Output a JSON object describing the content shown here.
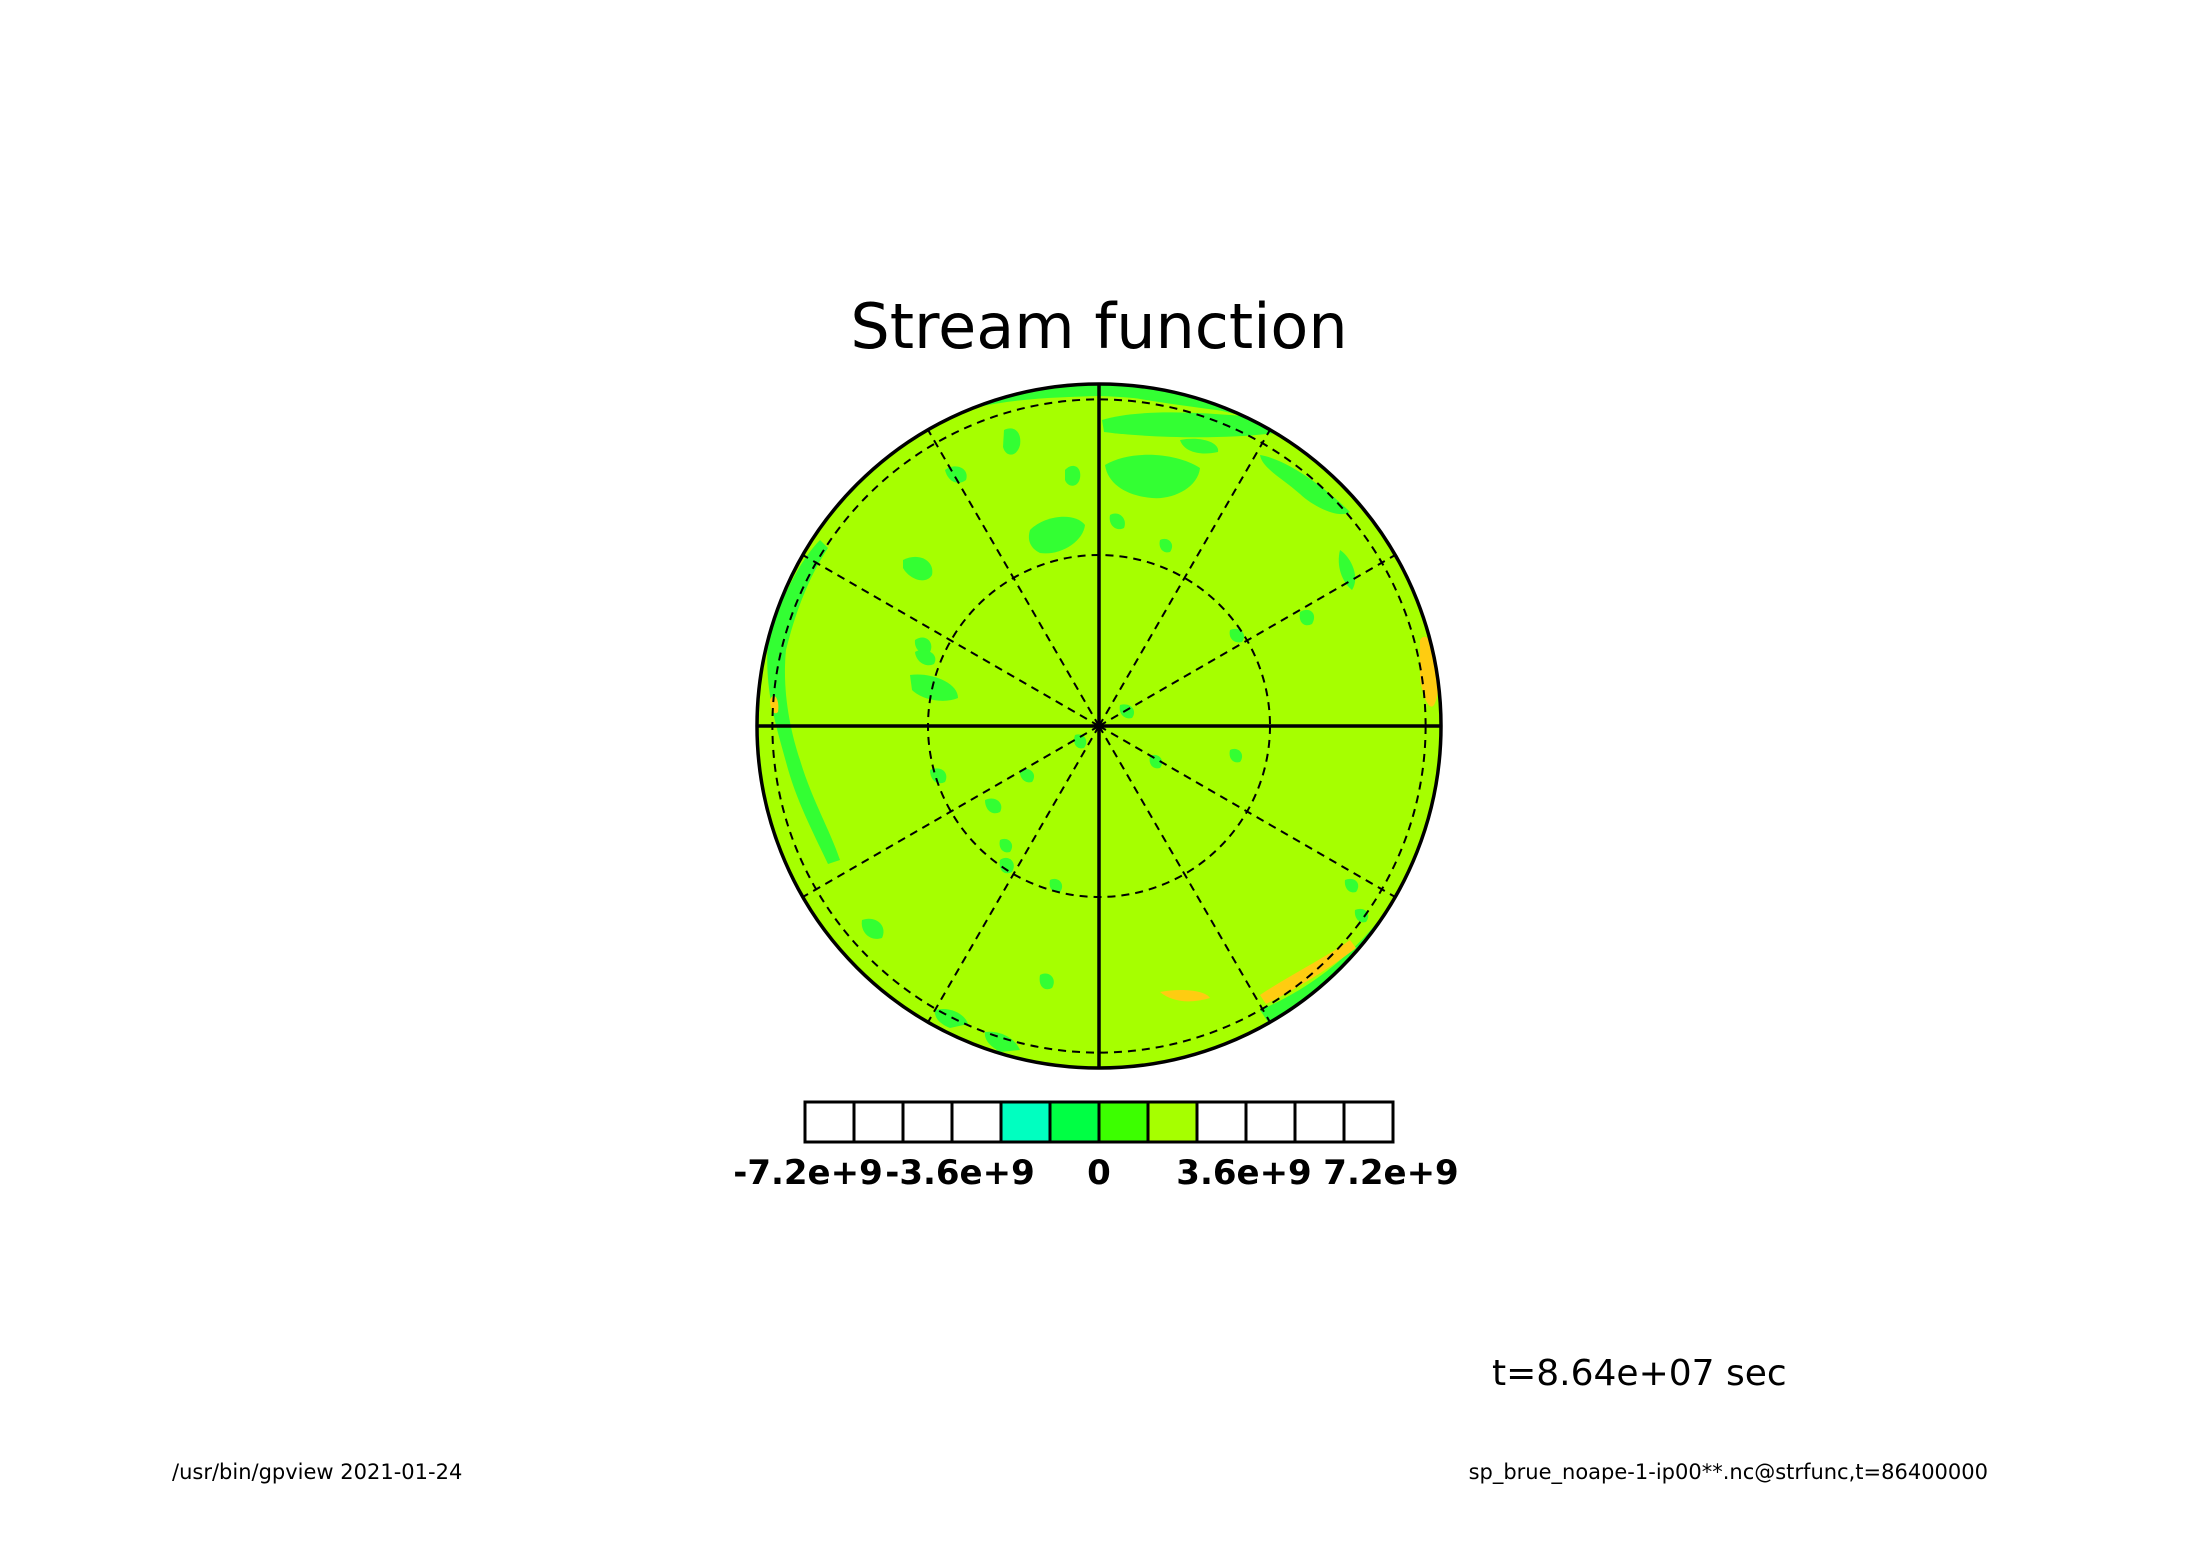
{
  "title": "Stream function",
  "time_label": "t=8.64e+07 sec",
  "footer_left": "/usr/bin/gpview  2021-01-24",
  "footer_right": "sp_brue_noape-1-ip00**.nc@strfunc,t=86400000",
  "colors": {
    "background_field": "#a6ff00",
    "patch_green": "#33ff33",
    "patch_orange": "#ffcc11",
    "outline": "#000000"
  },
  "colorbar": {
    "ticks": [
      "-7.2e+9",
      "-3.6e+9",
      "0",
      "3.6e+9",
      "7.2e+9"
    ],
    "colors": [
      "#ffffff",
      "#ffffff",
      "#ffffff",
      "#ffffff",
      "#00ffc0",
      "#00ff44",
      "#3cff00",
      "#a6ff00",
      "#ffffff",
      "#ffffff",
      "#ffffff",
      "#ffffff"
    ]
  }
}
